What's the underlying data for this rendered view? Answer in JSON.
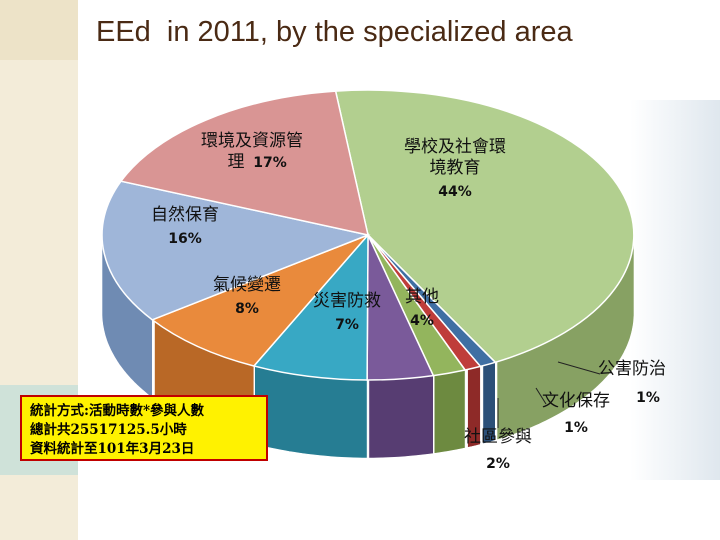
{
  "title": "EEd  in 2011, by the specialized area",
  "chart_data": {
    "type": "pie",
    "title": "EEd  in 2011, by the specialized area",
    "slices": [
      {
        "label": [
          "學校及社會環",
          "境教育"
        ],
        "percent_label": "44%",
        "value": 44,
        "color": "#b2cf8f",
        "side": "#87a163"
      },
      {
        "label": [
          "公害防治"
        ],
        "percent_label": "1%",
        "value": 1,
        "color": "#3f6fa3",
        "side": "#2b4f78"
      },
      {
        "label": [
          "文化保存"
        ],
        "percent_label": "1%",
        "value": 1,
        "color": "#bf3d3a",
        "side": "#8e2a28"
      },
      {
        "label": [
          "社區參與"
        ],
        "percent_label": "2%",
        "value": 2,
        "color": "#93b55d",
        "side": "#6d8a40"
      },
      {
        "label": [
          "其他"
        ],
        "percent_label": "4%",
        "value": 4,
        "color": "#7a5a9a",
        "side": "#573d72"
      },
      {
        "label": [
          "災害防救"
        ],
        "percent_label": "7%",
        "value": 7,
        "color": "#38a8c4",
        "side": "#267d93"
      },
      {
        "label": [
          "氣候變遷"
        ],
        "percent_label": "8%",
        "value": 8,
        "color": "#e98a3c",
        "side": "#b96826"
      },
      {
        "label": [
          "自然保育"
        ],
        "percent_label": "16%",
        "value": 16,
        "color": "#9fb6d9",
        "side": "#6f8bb3"
      },
      {
        "label": [
          "環境及資源管",
          "理"
        ],
        "percent_label": "17%",
        "value": 17,
        "color": "#d99594",
        "side": "#b06d6c"
      }
    ],
    "legend": "none"
  },
  "info_box": {
    "lines": [
      "統計方式:活動時數*參與人數",
      "總計共25517125.5小時",
      "資料統計至101年3月23日"
    ]
  }
}
